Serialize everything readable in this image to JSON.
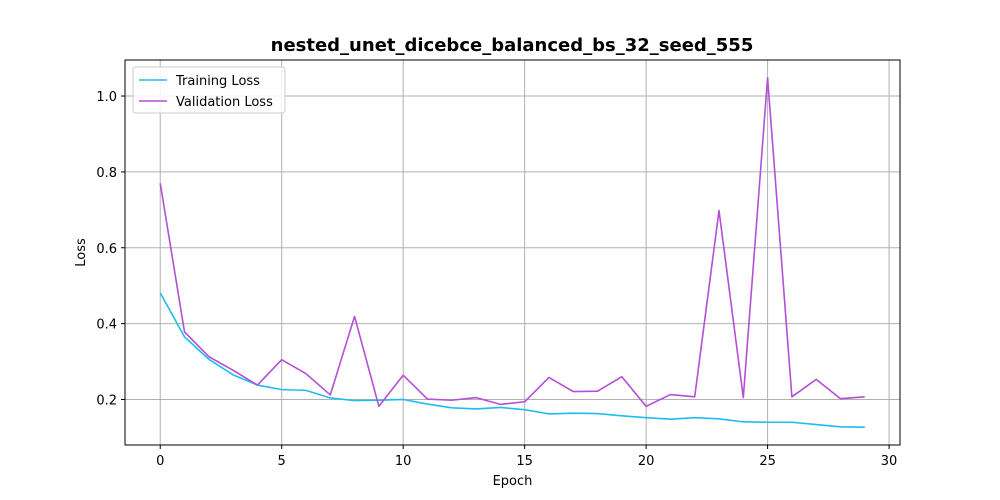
{
  "chart_data": {
    "type": "line",
    "title": "nested_unet_dicebce_balanced_bs_32_seed_555",
    "xlabel": "Epoch",
    "ylabel": "Loss",
    "xlim": [
      -1.45,
      30.45
    ],
    "ylim": [
      0.08,
      1.095
    ],
    "xticks": [
      0,
      5,
      10,
      15,
      20,
      25,
      30
    ],
    "yticks": [
      0.2,
      0.4,
      0.6,
      0.8,
      1.0
    ],
    "ytick_labels": [
      "0.2",
      "0.4",
      "0.6",
      "0.8",
      "1.0"
    ],
    "grid": true,
    "legend_position": "top-left",
    "x": [
      0,
      1,
      2,
      3,
      4,
      5,
      6,
      7,
      8,
      9,
      10,
      11,
      12,
      13,
      14,
      15,
      16,
      17,
      18,
      19,
      20,
      21,
      22,
      23,
      24,
      25,
      26,
      27,
      28,
      29
    ],
    "series": [
      {
        "name": "Training Loss",
        "color": "#1ebdf0",
        "values": [
          0.481,
          0.365,
          0.306,
          0.265,
          0.238,
          0.226,
          0.224,
          0.204,
          0.197,
          0.198,
          0.2,
          0.188,
          0.178,
          0.175,
          0.179,
          0.173,
          0.162,
          0.164,
          0.163,
          0.157,
          0.152,
          0.148,
          0.152,
          0.149,
          0.141,
          0.14,
          0.14,
          0.134,
          0.128,
          0.127
        ]
      },
      {
        "name": "Validation Loss",
        "color": "#b44fd6",
        "values": [
          0.77,
          0.378,
          0.313,
          0.277,
          0.238,
          0.305,
          0.268,
          0.212,
          0.419,
          0.182,
          0.264,
          0.201,
          0.198,
          0.205,
          0.187,
          0.194,
          0.258,
          0.221,
          0.222,
          0.26,
          0.182,
          0.213,
          0.207,
          0.698,
          0.205,
          1.048,
          0.207,
          0.253,
          0.202,
          0.207
        ]
      }
    ]
  }
}
